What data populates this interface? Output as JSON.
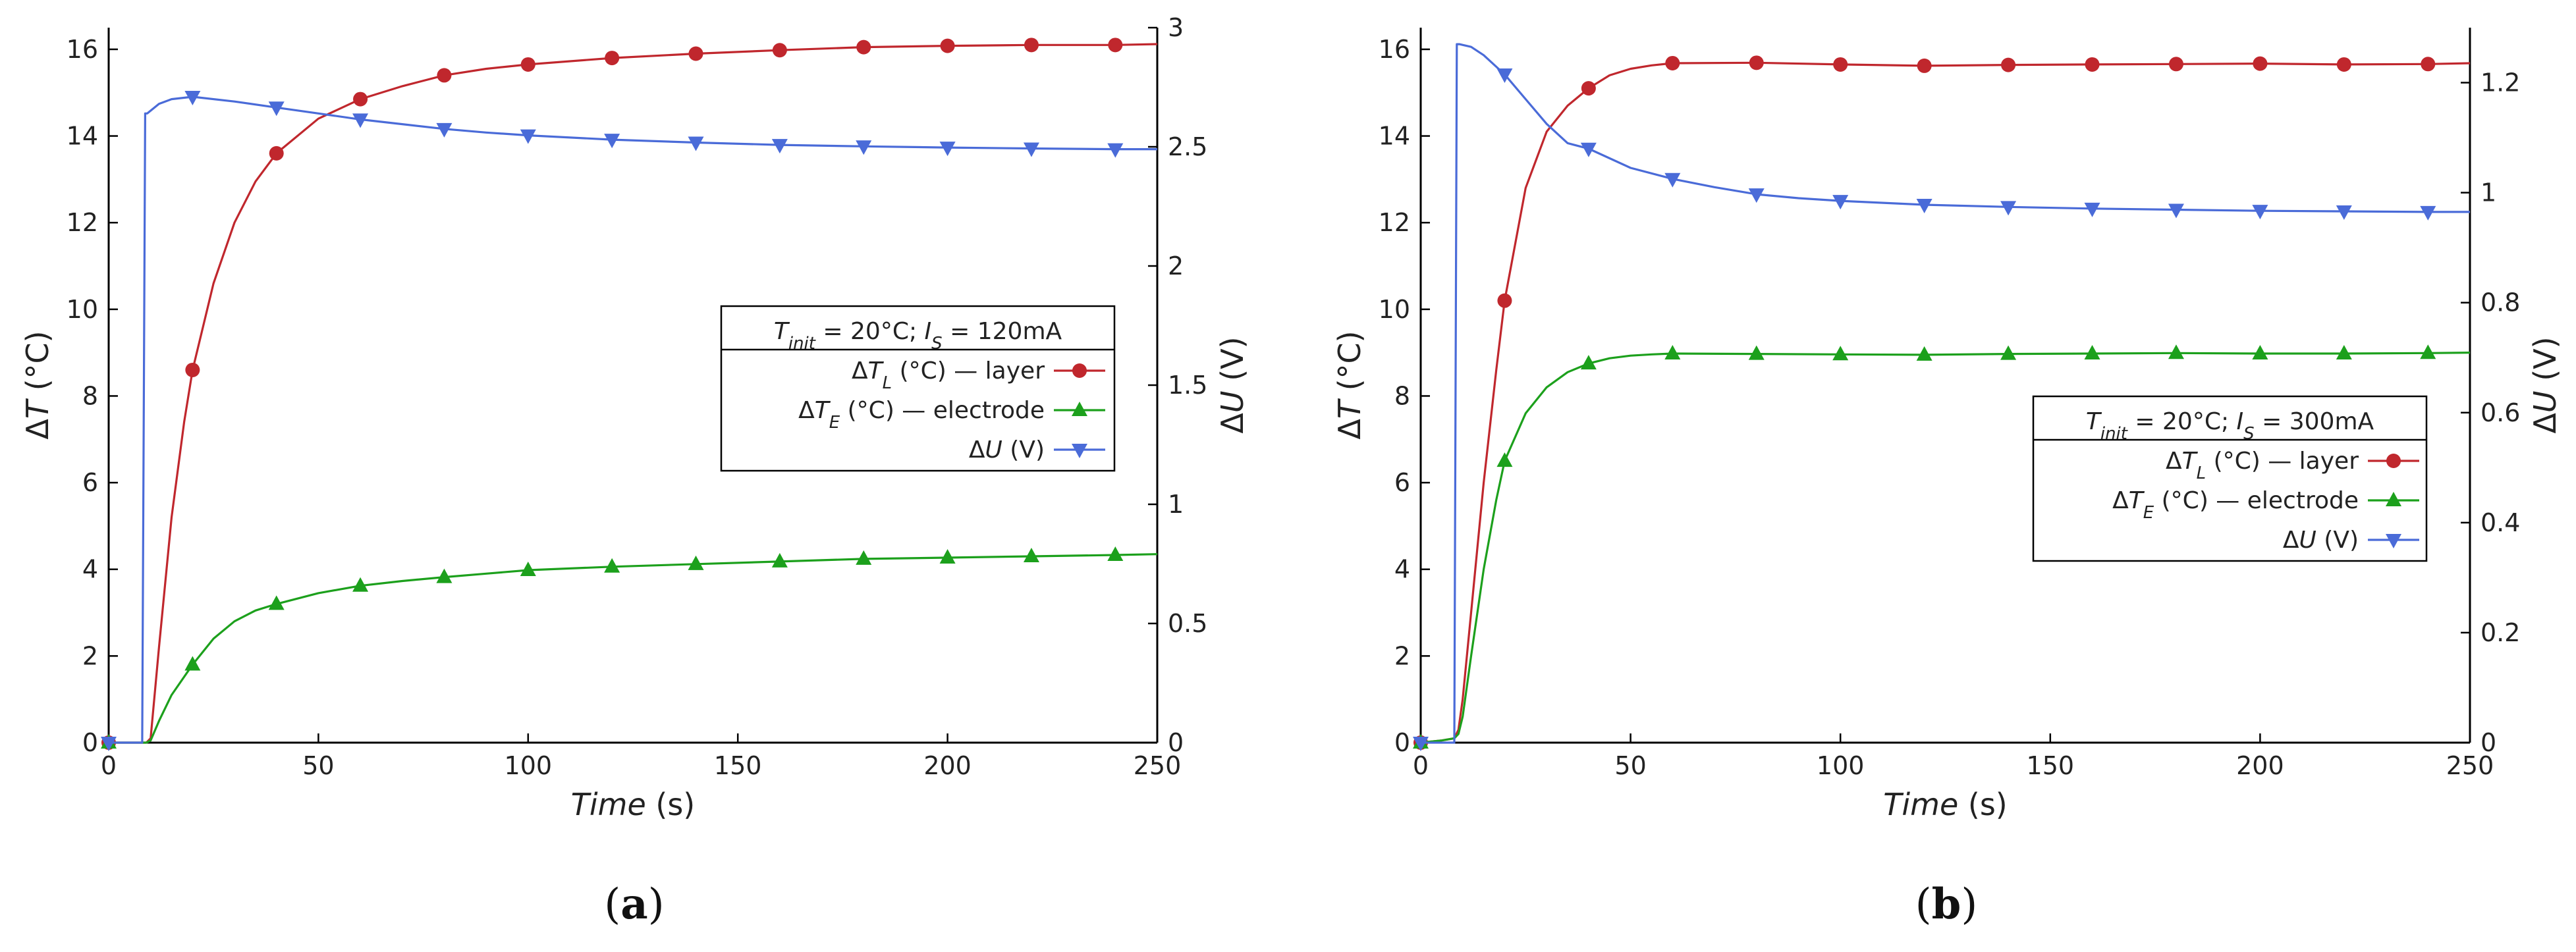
{
  "chart_data": [
    {
      "type": "line",
      "panel_label": "(a)",
      "legend_title": {
        "prefix": "T",
        "prefix_sub": "init",
        "middle": " = 20°C; ",
        "mid_var": "I",
        "mid_sub": "S",
        "suffix": " = 120mA"
      },
      "xlabel": {
        "text": "Time",
        "unit": " (s)"
      },
      "ylabel_left": {
        "prefix": "Δ",
        "var": "T",
        "unit": " (°C)"
      },
      "ylabel_right": {
        "prefix": "Δ",
        "var": "U",
        "unit": " (V)"
      },
      "xlim": [
        0,
        250
      ],
      "ylim_left": [
        0,
        16.5
      ],
      "ylim_right": [
        0,
        3
      ],
      "xticks": [
        "0",
        "50",
        "100",
        "150",
        "200",
        "250"
      ],
      "yticks_left": [
        "0",
        "2",
        "4",
        "6",
        "8",
        "10",
        "12",
        "14",
        "16"
      ],
      "yticks_right": [
        "0",
        "0.5",
        "1",
        "1.5",
        "2",
        "2.5",
        "3"
      ],
      "series": [
        {
          "name": "ΔTL (°C) — layer",
          "legend": {
            "prefix": "Δ",
            "var": "T",
            "sub": "L",
            "rest": " (°C) — layer"
          },
          "axis": "left",
          "color": "#c0272d",
          "marker": "circle",
          "x": [
            0,
            5,
            9,
            10,
            12,
            15,
            18,
            20,
            25,
            30,
            35,
            40,
            50,
            60,
            70,
            80,
            90,
            100,
            120,
            140,
            160,
            180,
            200,
            220,
            240,
            250
          ],
          "y": [
            0,
            0,
            0,
            0.1,
            2.2,
            5.2,
            7.4,
            8.6,
            10.6,
            12.0,
            12.95,
            13.6,
            14.4,
            14.85,
            15.15,
            15.4,
            15.55,
            15.65,
            15.8,
            15.9,
            15.98,
            16.05,
            16.08,
            16.1,
            16.1,
            16.12
          ],
          "marker_x": [
            20,
            40,
            60,
            80,
            100,
            120,
            140,
            160,
            180,
            200,
            220,
            240
          ],
          "marker_y": [
            8.6,
            13.6,
            14.85,
            15.4,
            15.65,
            15.8,
            15.9,
            15.98,
            16.05,
            16.08,
            16.1,
            16.1
          ]
        },
        {
          "name": "ΔTE (°C) — electrode",
          "legend": {
            "prefix": "Δ",
            "var": "T",
            "sub": "E",
            "rest": " (°C) — electrode"
          },
          "axis": "left",
          "color": "#1ca01c",
          "marker": "triangle-up",
          "x": [
            0,
            5,
            9,
            10,
            12,
            15,
            20,
            25,
            30,
            35,
            40,
            50,
            60,
            70,
            80,
            90,
            100,
            120,
            140,
            160,
            180,
            200,
            220,
            240,
            250
          ],
          "y": [
            0,
            0,
            0,
            0.05,
            0.5,
            1.1,
            1.8,
            2.4,
            2.8,
            3.05,
            3.2,
            3.45,
            3.62,
            3.73,
            3.82,
            3.9,
            3.98,
            4.06,
            4.12,
            4.18,
            4.24,
            4.27,
            4.3,
            4.33,
            4.35
          ],
          "marker_x": [
            20,
            40,
            60,
            80,
            100,
            120,
            140,
            160,
            180,
            200,
            220,
            240
          ],
          "marker_y": [
            1.8,
            3.2,
            3.62,
            3.82,
            3.98,
            4.06,
            4.12,
            4.18,
            4.24,
            4.27,
            4.3,
            4.33
          ]
        },
        {
          "name": "ΔU (V)",
          "legend": {
            "prefix": "Δ",
            "var": "U",
            "sub": "",
            "rest": " (V)"
          },
          "axis": "right",
          "color": "#4a6bd8",
          "marker": "triangle-down",
          "x": [
            0,
            8,
            8.7,
            9.2,
            12,
            15,
            20,
            30,
            40,
            50,
            60,
            70,
            80,
            90,
            100,
            120,
            140,
            160,
            180,
            200,
            220,
            240,
            250
          ],
          "y": [
            0,
            0,
            2.64,
            2.64,
            2.68,
            2.7,
            2.71,
            2.69,
            2.665,
            2.64,
            2.615,
            2.595,
            2.575,
            2.56,
            2.548,
            2.53,
            2.518,
            2.508,
            2.502,
            2.497,
            2.493,
            2.49,
            2.49
          ],
          "marker_x": [
            20,
            40,
            60,
            80,
            100,
            120,
            140,
            160,
            180,
            200,
            220,
            240
          ],
          "marker_y": [
            2.71,
            2.665,
            2.615,
            2.575,
            2.548,
            2.53,
            2.518,
            2.508,
            2.502,
            2.497,
            2.493,
            2.49
          ]
        }
      ]
    },
    {
      "type": "line",
      "panel_label": "(b)",
      "legend_title": {
        "prefix": "T",
        "prefix_sub": "init",
        "middle": " = 20°C; ",
        "mid_var": "I",
        "mid_sub": "S",
        "suffix": " = 300mA"
      },
      "xlabel": {
        "text": "Time",
        "unit": " (s)"
      },
      "ylabel_left": {
        "prefix": "Δ",
        "var": "T",
        "unit": " (°C)"
      },
      "ylabel_right": {
        "prefix": "Δ",
        "var": "U",
        "unit": " (V)"
      },
      "xlim": [
        0,
        250
      ],
      "ylim_left": [
        0,
        16.5
      ],
      "ylim_right": [
        0,
        1.3
      ],
      "xticks": [
        "0",
        "50",
        "100",
        "150",
        "200",
        "250"
      ],
      "yticks_left": [
        "0",
        "2",
        "4",
        "6",
        "8",
        "10",
        "12",
        "14",
        "16"
      ],
      "yticks_right": [
        "0",
        "0.2",
        "0.4",
        "0.6",
        "0.8",
        "1",
        "1.2"
      ],
      "series": [
        {
          "name": "ΔTL (°C) — layer",
          "legend": {
            "prefix": "Δ",
            "var": "T",
            "sub": "L",
            "rest": " (°C) — layer"
          },
          "axis": "left",
          "color": "#c0272d",
          "marker": "circle",
          "x": [
            0,
            5,
            8,
            9,
            10,
            12,
            15,
            18,
            20,
            25,
            30,
            35,
            40,
            45,
            50,
            55,
            60,
            80,
            100,
            120,
            140,
            160,
            180,
            200,
            220,
            240,
            250
          ],
          "y": [
            0,
            0.05,
            0.1,
            0.3,
            1.0,
            3.0,
            6.0,
            8.6,
            10.2,
            12.8,
            14.1,
            14.7,
            15.1,
            15.4,
            15.55,
            15.63,
            15.68,
            15.69,
            15.65,
            15.62,
            15.64,
            15.65,
            15.66,
            15.67,
            15.65,
            15.66,
            15.68
          ],
          "marker_x": [
            20,
            40,
            60,
            80,
            100,
            120,
            140,
            160,
            180,
            200,
            220,
            240
          ],
          "marker_y": [
            10.2,
            15.1,
            15.68,
            15.69,
            15.65,
            15.62,
            15.64,
            15.65,
            15.66,
            15.67,
            15.65,
            15.66
          ]
        },
        {
          "name": "ΔTE (°C) — electrode",
          "legend": {
            "prefix": "Δ",
            "var": "T",
            "sub": "E",
            "rest": " (°C) — electrode"
          },
          "axis": "left",
          "color": "#1ca01c",
          "marker": "triangle-up",
          "x": [
            0,
            5,
            8,
            9,
            10,
            12,
            15,
            18,
            20,
            25,
            30,
            35,
            40,
            45,
            50,
            55,
            60,
            80,
            100,
            120,
            140,
            160,
            180,
            200,
            220,
            240,
            250
          ],
          "y": [
            0,
            0.05,
            0.1,
            0.2,
            0.6,
            2.0,
            4.0,
            5.6,
            6.5,
            7.6,
            8.2,
            8.55,
            8.75,
            8.87,
            8.93,
            8.96,
            8.98,
            8.97,
            8.96,
            8.95,
            8.97,
            8.98,
            8.99,
            8.98,
            8.98,
            8.99,
            9.0
          ],
          "marker_x": [
            20,
            40,
            60,
            80,
            100,
            120,
            140,
            160,
            180,
            200,
            220,
            240
          ],
          "marker_y": [
            6.5,
            8.75,
            8.98,
            8.97,
            8.96,
            8.95,
            8.97,
            8.98,
            8.99,
            8.98,
            8.98,
            8.99
          ]
        },
        {
          "name": "ΔU (V)",
          "legend": {
            "prefix": "Δ",
            "var": "U",
            "sub": "",
            "rest": " (V)"
          },
          "axis": "right",
          "color": "#4a6bd8",
          "marker": "triangle-down",
          "x": [
            0,
            8,
            8.6,
            9.2,
            12,
            15,
            20,
            25,
            30,
            35,
            40,
            50,
            60,
            70,
            80,
            90,
            100,
            120,
            140,
            160,
            180,
            200,
            220,
            240,
            250
          ],
          "y": [
            0,
            0,
            1.27,
            1.27,
            1.265,
            1.25,
            1.215,
            1.17,
            1.125,
            1.09,
            1.08,
            1.045,
            1.025,
            1.01,
            0.997,
            0.99,
            0.985,
            0.978,
            0.974,
            0.971,
            0.969,
            0.967,
            0.966,
            0.965,
            0.965
          ],
          "marker_x": [
            20,
            40,
            60,
            80,
            100,
            120,
            140,
            160,
            180,
            200,
            220,
            240
          ],
          "marker_y": [
            1.215,
            1.08,
            1.025,
            0.997,
            0.985,
            0.978,
            0.974,
            0.971,
            0.969,
            0.967,
            0.966,
            0.965
          ]
        }
      ]
    }
  ]
}
